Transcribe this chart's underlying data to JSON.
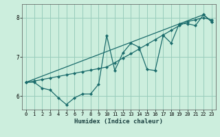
{
  "xlabel": "Humidex (Indice chaleur)",
  "bg_color": "#cceedd",
  "grid_color": "#99ccbb",
  "line_color": "#1a6b6b",
  "xlim": [
    -0.5,
    23.5
  ],
  "ylim": [
    5.65,
    8.35
  ],
  "yticks": [
    6,
    7,
    8
  ],
  "xticks": [
    0,
    1,
    2,
    3,
    4,
    5,
    6,
    7,
    8,
    9,
    10,
    11,
    12,
    13,
    14,
    15,
    16,
    17,
    18,
    19,
    20,
    21,
    22,
    23
  ],
  "line1_x": [
    0,
    1,
    2,
    3,
    4,
    5,
    6,
    7,
    8,
    9,
    10,
    11,
    12,
    13,
    14,
    15,
    16,
    17,
    18,
    19,
    20,
    21,
    22,
    23
  ],
  "line1_y": [
    6.35,
    6.35,
    6.2,
    6.15,
    5.95,
    5.78,
    5.95,
    6.05,
    6.05,
    6.3,
    7.55,
    6.65,
    7.1,
    7.35,
    7.25,
    6.68,
    6.65,
    7.55,
    7.35,
    7.85,
    7.85,
    7.8,
    8.08,
    7.9
  ],
  "line2_x": [
    0,
    1,
    2,
    3,
    4,
    5,
    6,
    7,
    8,
    9,
    10,
    11,
    12,
    13,
    14,
    15,
    16,
    17,
    18,
    19,
    20,
    21,
    22,
    23
  ],
  "line2_y": [
    6.35,
    6.38,
    6.42,
    6.46,
    6.5,
    6.54,
    6.58,
    6.62,
    6.66,
    6.7,
    6.74,
    6.85,
    6.97,
    7.08,
    7.2,
    7.32,
    7.44,
    7.56,
    7.68,
    7.8,
    7.9,
    7.95,
    8.0,
    7.95
  ],
  "line3_x": [
    0,
    22,
    23
  ],
  "line3_y": [
    6.35,
    8.08,
    7.9
  ]
}
